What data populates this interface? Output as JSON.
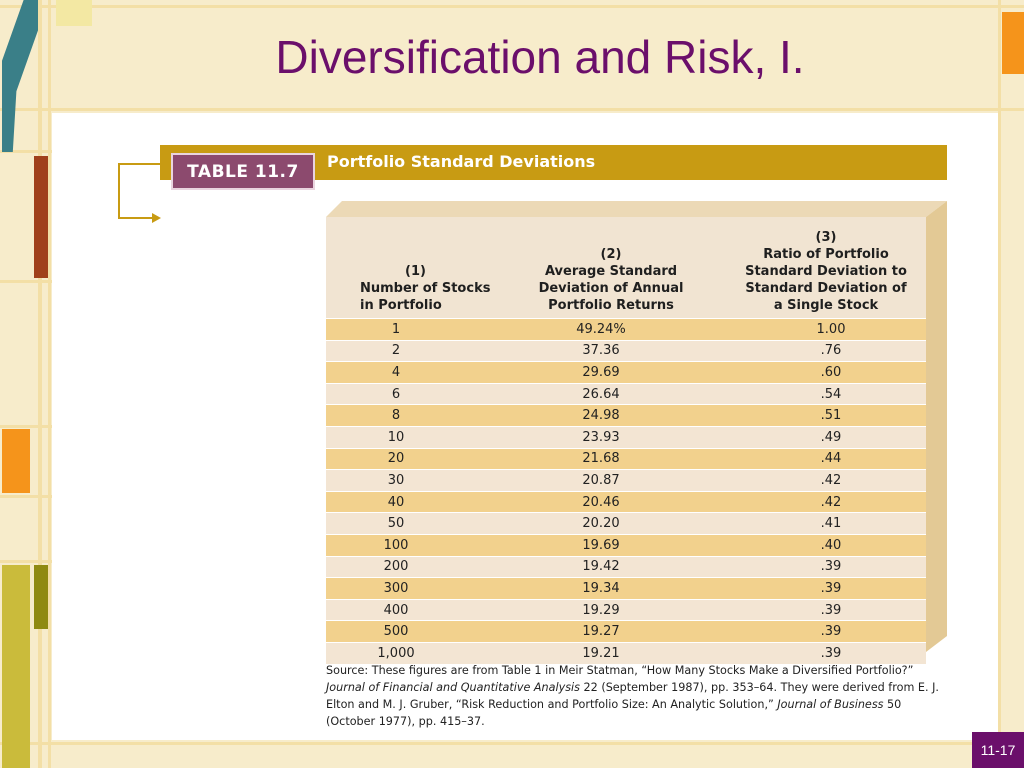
{
  "slide": {
    "title": "Diversification and Risk, I.",
    "number": "11-17"
  },
  "table": {
    "badge": "TABLE 11.7",
    "title": "Portfolio Standard Deviations",
    "headers": {
      "col1": [
        "(1)",
        "Number of Stocks",
        "in Portfolio"
      ],
      "col2": [
        "(2)",
        "Average Standard",
        "Deviation of Annual",
        "Portfolio Returns"
      ],
      "col3": [
        "(3)",
        "Ratio of Portfolio",
        "Standard Deviation to",
        "Standard Deviation of",
        "a Single Stock"
      ]
    },
    "rows": [
      [
        "1",
        "49.24%",
        "1.00"
      ],
      [
        "2",
        "37.36",
        ".76"
      ],
      [
        "4",
        "29.69",
        ".60"
      ],
      [
        "6",
        "26.64",
        ".54"
      ],
      [
        "8",
        "24.98",
        ".51"
      ],
      [
        "10",
        "23.93",
        ".49"
      ],
      [
        "20",
        "21.68",
        ".44"
      ],
      [
        "30",
        "20.87",
        ".42"
      ],
      [
        "40",
        "20.46",
        ".42"
      ],
      [
        "50",
        "20.20",
        ".41"
      ],
      [
        "100",
        "19.69",
        ".40"
      ],
      [
        "200",
        "19.42",
        ".39"
      ],
      [
        "300",
        "19.34",
        ".39"
      ],
      [
        "400",
        "19.29",
        ".39"
      ],
      [
        "500",
        "19.27",
        ".39"
      ],
      [
        "1,000",
        "19.21",
        ".39"
      ]
    ]
  },
  "source": {
    "prefix": "Source: These figures are from Table 1 in Meir Statman, “How Many Stocks Make a Diversified Portfolio?” ",
    "journal1": "Journal of Financial and Quantitative Analysis",
    "mid": " 22 (September 1987), pp. 353–64. They were derived from E. J. Elton and M. J. Gruber, “Risk Reduction and Portfolio Size: An Analytic Solution,” ",
    "journal2": "Journal of Business",
    "suffix": " 50 (October 1977), pp. 415–37."
  },
  "colors": {
    "title": "#6b0f6b",
    "gold": "#c89b13",
    "badge": "#8c4a6e",
    "row_odd": "#f2d18d",
    "row_even": "#f3e5d3"
  }
}
